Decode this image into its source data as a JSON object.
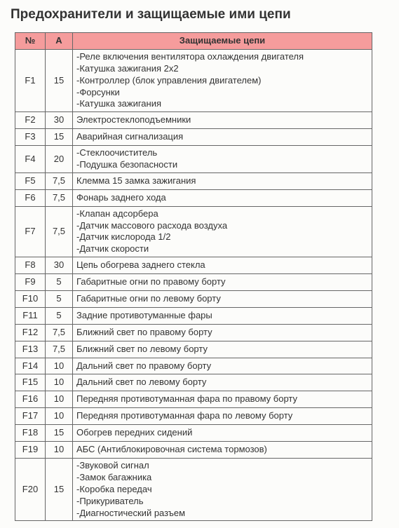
{
  "title": "Предохранители и защищаемые ими цепи",
  "table": {
    "header_bg": "#f59c9c",
    "columns": [
      "№",
      "А",
      "Защищаемые цепи"
    ],
    "rows": [
      {
        "n": "F1",
        "a": "15",
        "circuits": [
          "-Реле включения вентилятора охлаждения двигателя",
          "-Катушка зажигания 2x2",
          "-Контроллер (блок управления двигателем)",
          "-Форсунки",
          "-Катушка зажигания"
        ]
      },
      {
        "n": "F2",
        "a": "30",
        "circuits": [
          "Электростеклоподъемники"
        ]
      },
      {
        "n": "F3",
        "a": "15",
        "circuits": [
          "Аварийная сигнализация"
        ]
      },
      {
        "n": "F4",
        "a": "20",
        "circuits": [
          "-Стеклоочиститель",
          "-Подушка безопасности"
        ]
      },
      {
        "n": "F5",
        "a": "7,5",
        "circuits": [
          "Клемма 15 замка зажигания"
        ]
      },
      {
        "n": "F6",
        "a": "7,5",
        "circuits": [
          "Фонарь заднего хода"
        ]
      },
      {
        "n": "F7",
        "a": "7,5",
        "circuits": [
          "-Клапан адсорбера",
          "-Датчик массового расхода воздуха",
          "-Датчик кислорода 1/2",
          "-Датчик скорости"
        ]
      },
      {
        "n": "F8",
        "a": "30",
        "circuits": [
          "Цепь обогрева заднего стекла"
        ]
      },
      {
        "n": "F9",
        "a": "5",
        "circuits": [
          "Габаритные огни по правому борту"
        ]
      },
      {
        "n": "F10",
        "a": "5",
        "circuits": [
          "Габаритные огни по левому борту"
        ]
      },
      {
        "n": "F11",
        "a": "5",
        "circuits": [
          "Задние противотуманные фары"
        ]
      },
      {
        "n": "F12",
        "a": "7,5",
        "circuits": [
          "Ближний свет по правому борту"
        ]
      },
      {
        "n": "F13",
        "a": "7,5",
        "circuits": [
          "Ближний свет по левому борту"
        ]
      },
      {
        "n": "F14",
        "a": "10",
        "circuits": [
          "Дальний свет по правому борту"
        ]
      },
      {
        "n": "F15",
        "a": "10",
        "circuits": [
          "Дальний свет по левому борту"
        ]
      },
      {
        "n": "F16",
        "a": "10",
        "circuits": [
          "Передняя противотуманная фара по правому борту"
        ]
      },
      {
        "n": "F17",
        "a": "10",
        "circuits": [
          "Передняя противотуманная фара по левому борту"
        ]
      },
      {
        "n": "F18",
        "a": "15",
        "circuits": [
          "Обогрев передних сидений"
        ]
      },
      {
        "n": "F19",
        "a": "10",
        "circuits": [
          "АБС (Антиблокировочная система тормозов)"
        ]
      },
      {
        "n": "F20",
        "a": "15",
        "circuits": [
          "-Звуковой сигнал",
          "-Замок багажника",
          "-Коробка передач",
          "-Прикуриватель",
          "-Диагностический разъем"
        ]
      }
    ]
  }
}
